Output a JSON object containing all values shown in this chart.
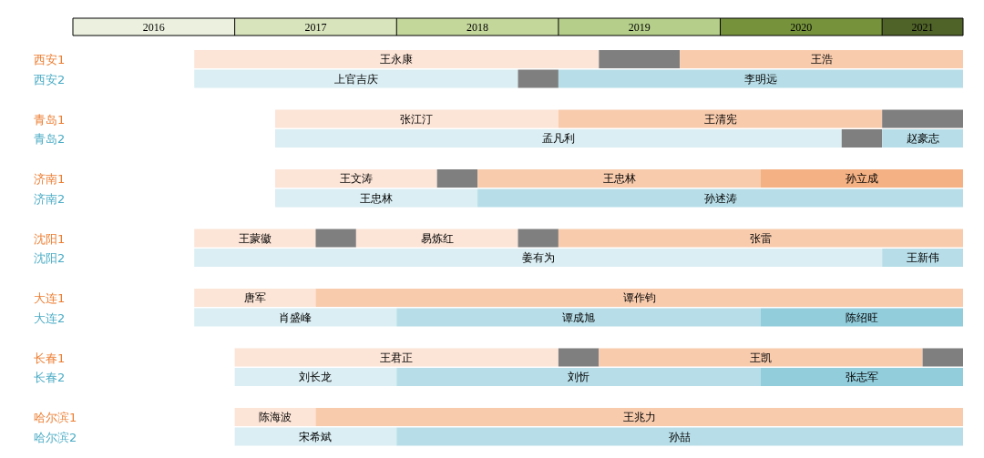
{
  "chart_data": {
    "type": "bar",
    "orientation": "horizontal",
    "grid": false,
    "categories": [
      "西安1",
      "西安2",
      "青岛1",
      "青岛2",
      "济南1",
      "济南2",
      "沈阳1",
      "沈阳2",
      "大连1",
      "大连2",
      "长春1",
      "长春2",
      "哈尔滨1",
      "哈尔滨2"
    ],
    "xlim": [
      2016,
      2021.5
    ],
    "xticks": [
      {
        "value": 2016.5,
        "label": "2016"
      },
      {
        "value": 2017.5,
        "label": "2017"
      },
      {
        "value": 2018.5,
        "label": "2018"
      },
      {
        "value": 2019.5,
        "label": "2019"
      },
      {
        "value": 2020.5,
        "label": "2020"
      },
      {
        "value": 2021.25,
        "label": "2021"
      }
    ],
    "series": [
      {
        "base": [
          2016.75,
          2016.75,
          2017.25,
          2017.25,
          2017.25,
          2017.25,
          2016.75,
          2016.75,
          2016.75,
          2016.75,
          2017,
          2017,
          2017,
          2017
        ],
        "values": [
          2.5,
          2.0,
          1.75,
          3.5,
          1.0,
          1.25,
          0.75,
          4.25,
          0.75,
          1.25,
          2.0,
          1.0,
          0.5,
          1.0
        ],
        "value_labels": [
          "王永康",
          "上官吉庆",
          "张江汀",
          "孟凡利",
          "王文涛",
          "王忠林",
          "王蒙徽",
          "姜有为",
          "唐军",
          "肖盛峰",
          "王君正",
          "刘长龙",
          "陈海波",
          "宋希斌"
        ],
        "colors": [
          "#fce4d6",
          "#daeef3",
          "#fce4d6",
          "#daeef3",
          "#fce4d6",
          "#daeef3",
          "#fce4d6",
          "#daeef3",
          "#fce4d6",
          "#daeef3",
          "#fce4d6",
          "#daeef3",
          "#fce4d6",
          "#daeef3"
        ]
      },
      {
        "base": [
          2019.25,
          2018.75,
          2019,
          2020.75,
          2018.25,
          2018.5,
          2017.5,
          2021,
          2017.5,
          2018,
          2019,
          2018,
          2017.5,
          2018
        ],
        "values": [
          0.5,
          0.25,
          2.0,
          0.25,
          0.25,
          3.0,
          0.25,
          0.5,
          4.0,
          2.25,
          0.25,
          2.25,
          4.0,
          3.5
        ],
        "value_labels": [
          null,
          null,
          "王清宪",
          null,
          null,
          "孙述涛",
          null,
          "王新伟",
          "谭作钧",
          "谭成旭",
          null,
          "刘忻",
          "王兆力",
          "孙喆"
        ],
        "colors": [
          "#7f7f7f",
          "#7f7f7f",
          "#f8cbad",
          "#7f7f7f",
          "#7f7f7f",
          "#b7dee8",
          "#7f7f7f",
          "#b7dee8",
          "#f8cbad",
          "#b7dee8",
          "#7f7f7f",
          "#b7dee8",
          "#f8cbad",
          "#b7dee8"
        ]
      },
      {
        "base": [
          2019.75,
          2019,
          2021,
          2021,
          2018.5,
          null,
          2017.75,
          null,
          null,
          2020.25,
          2019.25,
          2020.25,
          null,
          null
        ],
        "values": [
          1.75,
          2.5,
          0.5,
          0.5,
          1.75,
          null,
          1.0,
          null,
          null,
          1.25,
          2.0,
          1.25,
          null,
          null
        ],
        "value_labels": [
          "王浩",
          "李明远",
          null,
          "赵豪志",
          "王忠林",
          null,
          "易炼红",
          null,
          null,
          "陈绍旺",
          "王凯",
          "张志军",
          null,
          null
        ],
        "colors": [
          "#f8cbad",
          "#b7dee8",
          "#7f7f7f",
          "#b7dee8",
          "#f8cbad",
          null,
          "#fce4d6",
          null,
          null,
          "#92cddc",
          "#f8cbad",
          "#92cddc",
          null,
          null
        ]
      },
      {
        "base": [
          null,
          null,
          null,
          null,
          2020.25,
          null,
          2018.75,
          null,
          null,
          null,
          2021.25,
          null,
          null,
          null
        ],
        "values": [
          null,
          null,
          null,
          null,
          1.25,
          null,
          0.25,
          null,
          null,
          null,
          0.25,
          null,
          null,
          null
        ],
        "value_labels": [
          null,
          null,
          null,
          null,
          "孙立成",
          null,
          null,
          null,
          null,
          null,
          null,
          null,
          null,
          null
        ],
        "colors": [
          null,
          null,
          null,
          null,
          "#f4b183",
          null,
          "#7f7f7f",
          null,
          null,
          null,
          "#7f7f7f",
          null,
          null,
          null
        ]
      },
      {
        "base": [
          null,
          null,
          null,
          null,
          null,
          null,
          2019,
          null,
          null,
          null,
          null,
          null,
          null,
          null
        ],
        "values": [
          null,
          null,
          null,
          null,
          null,
          null,
          2.5,
          null,
          null,
          null,
          null,
          null,
          null,
          null
        ],
        "value_labels": [
          null,
          null,
          null,
          null,
          null,
          null,
          "张雷",
          null,
          null,
          null,
          null,
          null,
          null,
          null
        ],
        "colors": [
          null,
          null,
          null,
          null,
          null,
          null,
          "#f8cbad",
          null,
          null,
          null,
          null,
          null,
          null,
          null
        ]
      }
    ]
  }
}
